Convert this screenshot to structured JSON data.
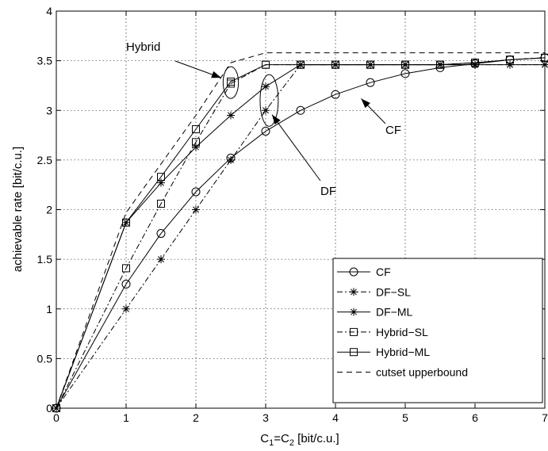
{
  "chart_data": {
    "type": "line",
    "xlabel": "C_1=C_2 [bit/c.u.]",
    "xlabel_parts": {
      "c1": "C",
      "sub1": "1",
      "eq": "=C",
      "sub2": "2",
      "unit": " [bit/c.u.]"
    },
    "ylabel": "achievable rate [bit/c.u.]",
    "xlim": [
      0,
      7
    ],
    "ylim": [
      0,
      4
    ],
    "xticks": [
      "0",
      "1",
      "2",
      "3",
      "4",
      "5",
      "6",
      "7"
    ],
    "yticks": [
      "0",
      "0.5",
      "1",
      "1.5",
      "2",
      "2.5",
      "3",
      "3.5",
      "4"
    ],
    "grid": true,
    "legend_position": "bottom-right",
    "series": [
      {
        "name": "CF",
        "marker": "circle",
        "linestyle": "solid",
        "x": [
          0,
          1,
          1.5,
          2,
          2.5,
          3,
          3.5,
          4,
          4.5,
          5,
          5.5,
          6,
          6.5,
          7
        ],
        "y": [
          0,
          1.25,
          1.76,
          2.18,
          2.52,
          2.79,
          3.0,
          3.16,
          3.28,
          3.37,
          3.43,
          3.47,
          3.51,
          3.53
        ]
      },
      {
        "name": "DF−SL",
        "marker": "star",
        "linestyle": "dashdot",
        "x": [
          0,
          1,
          1.5,
          2,
          2.5,
          3,
          3.5,
          4,
          4.5,
          5,
          5.5,
          6,
          6.5,
          7
        ],
        "y": [
          0,
          1.0,
          1.5,
          2.0,
          2.5,
          3.0,
          3.46,
          3.46,
          3.46,
          3.46,
          3.46,
          3.46,
          3.46,
          3.46
        ]
      },
      {
        "name": "DF−ML",
        "marker": "star",
        "linestyle": "solid",
        "x": [
          0,
          1,
          1.5,
          2,
          2.5,
          3,
          3.5,
          4,
          4.5,
          5,
          5.5,
          6,
          6.5,
          7
        ],
        "y": [
          0,
          1.87,
          2.27,
          2.63,
          2.95,
          3.24,
          3.46,
          3.46,
          3.46,
          3.46,
          3.46,
          3.46,
          3.46,
          3.46
        ]
      },
      {
        "name": "Hybrid−SL",
        "marker": "square",
        "linestyle": "dashdot",
        "x": [
          0,
          1,
          1.5,
          2,
          2.5,
          3,
          3.5,
          4,
          4.5,
          5,
          5.5,
          6,
          6.5,
          7
        ],
        "y": [
          0,
          1.41,
          2.06,
          2.68,
          3.27,
          3.46,
          3.46,
          3.46,
          3.46,
          3.46,
          3.46,
          3.48,
          3.51,
          3.53
        ]
      },
      {
        "name": "Hybrid−ML",
        "marker": "square",
        "linestyle": "solid",
        "x": [
          0,
          1,
          1.5,
          2,
          2.5,
          3,
          3.5,
          4,
          4.5,
          5,
          5.5,
          6,
          6.5,
          7
        ],
        "y": [
          0,
          1.87,
          2.33,
          2.81,
          3.29,
          3.46,
          3.46,
          3.46,
          3.46,
          3.46,
          3.46,
          3.48,
          3.51,
          3.53
        ]
      },
      {
        "name": "cutset upperbound",
        "marker": "none",
        "linestyle": "dashed",
        "x": [
          0,
          1,
          2,
          2.5,
          3,
          3.5,
          4,
          5,
          6,
          7
        ],
        "y": [
          0,
          1.97,
          2.95,
          3.48,
          3.58,
          3.58,
          3.58,
          3.58,
          3.58,
          3.58
        ]
      }
    ],
    "annotations": [
      {
        "text": "Hybrid",
        "points_to": [
          2.5,
          3.28
        ]
      },
      {
        "text": "DF",
        "points_to": [
          3.0,
          3.1
        ]
      },
      {
        "text": "CF",
        "points_to": [
          4.3,
          3.15
        ]
      }
    ],
    "ellipses": [
      {
        "cx": 2.5,
        "cy": 3.28,
        "rx": 0.11,
        "ry": 0.16
      },
      {
        "cx": 3.05,
        "cy": 3.1,
        "rx": 0.13,
        "ry": 0.26
      }
    ]
  }
}
